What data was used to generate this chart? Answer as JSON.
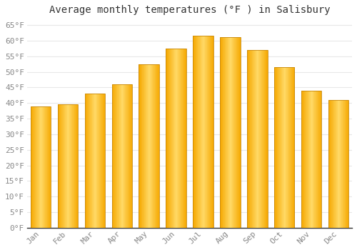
{
  "months": [
    "Jan",
    "Feb",
    "Mar",
    "Apr",
    "May",
    "Jun",
    "Jul",
    "Aug",
    "Sep",
    "Oct",
    "Nov",
    "Dec"
  ],
  "temperatures": [
    39,
    39.5,
    43,
    46,
    52.5,
    57.5,
    61.5,
    61,
    57,
    51.5,
    44,
    41
  ],
  "bar_color_center": "#FFD966",
  "bar_color_edge": "#F5A800",
  "title": "Average monthly temperatures (°F ) in Salisbury",
  "ylim": [
    0,
    67
  ],
  "ytick_values": [
    0,
    5,
    10,
    15,
    20,
    25,
    30,
    35,
    40,
    45,
    50,
    55,
    60,
    65
  ],
  "ytick_labels": [
    "0°F",
    "5°F",
    "10°F",
    "15°F",
    "20°F",
    "25°F",
    "30°F",
    "35°F",
    "40°F",
    "45°F",
    "50°F",
    "55°F",
    "60°F",
    "65°F"
  ],
  "background_color": "#ffffff",
  "grid_color": "#e8e8e8",
  "title_fontsize": 10,
  "tick_fontsize": 8,
  "tick_color": "#888888",
  "font_family": "monospace"
}
